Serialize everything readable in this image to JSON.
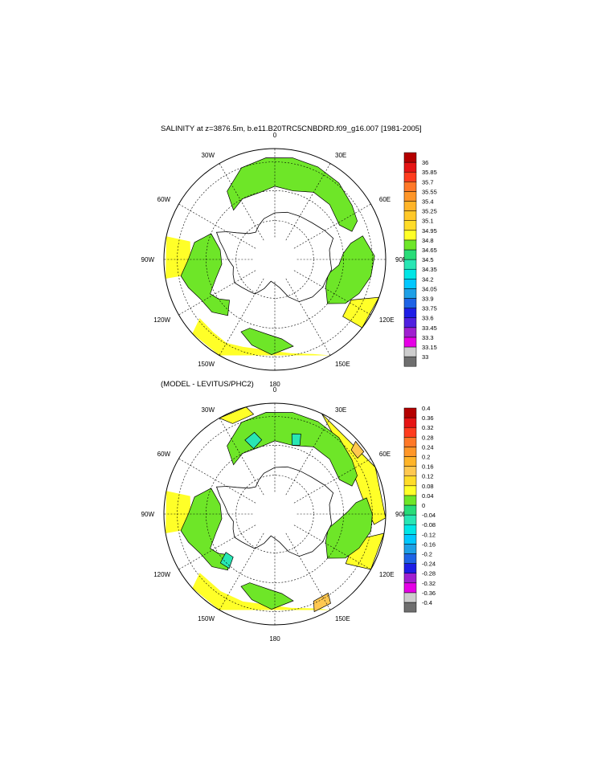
{
  "panels": [
    {
      "id": "salinity",
      "title": "SALINITY at z=3876.5m, b.e11.B20TRC5CNBDRD.f09_g16.007 [1981-2005]",
      "lon_labels": [
        "0",
        "30E",
        "60E",
        "90E",
        "120E",
        "150E",
        "180",
        "150W",
        "120W",
        "90W",
        "60W",
        "30W"
      ],
      "colorbar": {
        "colors": [
          "#6e6e6e",
          "#cdcdcd",
          "#e600e6",
          "#a020d0",
          "#5020e0",
          "#1e1ee6",
          "#1e64e6",
          "#1ea0e6",
          "#00c8ff",
          "#00e6e6",
          "#28e6b4",
          "#28dc78",
          "#6ee628",
          "#ffff28",
          "#ffdc28",
          "#ffc828",
          "#ffb428",
          "#ff9628",
          "#ff7828",
          "#ff3c1e",
          "#e61414",
          "#b40000"
        ],
        "labels": [
          "33",
          "33.15",
          "33.3",
          "33.45",
          "33.6",
          "33.75",
          "33.9",
          "34.05",
          "34.2",
          "34.35",
          "34.5",
          "34.65",
          "34.8",
          "34.95",
          "35.1",
          "35.25",
          "35.4",
          "35.55",
          "35.7",
          "35.85",
          "36"
        ]
      }
    },
    {
      "id": "difference",
      "title": "(MODEL - LEVITUS/PHC2)",
      "lon_labels": [
        "0",
        "30E",
        "60E",
        "90E",
        "120E",
        "150E",
        "180",
        "150W",
        "120W",
        "90W",
        "60W",
        "30W"
      ],
      "colorbar": {
        "colors": [
          "#6e6e6e",
          "#cdcdcd",
          "#e600e6",
          "#a020d0",
          "#1e1ee6",
          "#1e64e6",
          "#1ea0e6",
          "#00c8ff",
          "#00e6e6",
          "#28e6b4",
          "#28dc78",
          "#6ee628",
          "#ffff28",
          "#ffdc28",
          "#ffc850",
          "#ffb428",
          "#ff9628",
          "#ff7828",
          "#ff3c1e",
          "#e61414",
          "#b40000"
        ],
        "labels": [
          "-0.4",
          "-0.36",
          "-0.32",
          "-0.28",
          "-0.24",
          "-0.2",
          "-0.16",
          "-0.12",
          "-0.08",
          "-0.04",
          "0",
          "0.04",
          "0.08",
          "0.12",
          "0.16",
          "0.2",
          "0.24",
          "0.28",
          "0.32",
          "0.36",
          "0.4"
        ]
      }
    }
  ]
}
